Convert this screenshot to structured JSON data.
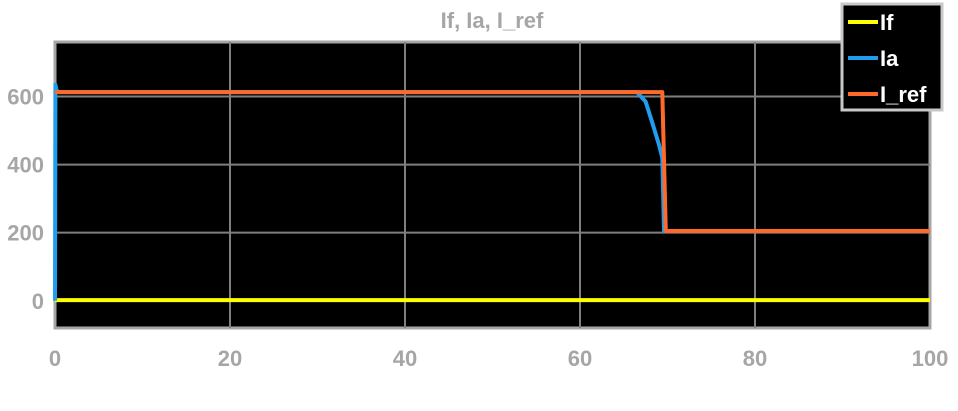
{
  "chart_data": {
    "type": "line",
    "title": "If, Ia, I_ref",
    "xlabel": "",
    "ylabel": "",
    "xlim": [
      0,
      100
    ],
    "ylim": [
      -80,
      760
    ],
    "xticks": [
      0,
      20,
      40,
      60,
      80,
      100
    ],
    "yticks": [
      0,
      200,
      400,
      600
    ],
    "grid": true,
    "background": "#000000",
    "grid_color": "#7f7f7f",
    "legend_position": "top-right",
    "series": [
      {
        "name": "If",
        "color": "#ffff00",
        "x": [
          0,
          100
        ],
        "y": [
          2,
          2
        ]
      },
      {
        "name": "Ia",
        "color": "#1f9ef0",
        "x": [
          0,
          0.05,
          0.15,
          0.3,
          0.5,
          66.5,
          67.5,
          68.3,
          69.0,
          69.4,
          69.6,
          70,
          100
        ],
        "y": [
          0,
          635,
          620,
          615,
          613,
          613,
          585,
          520,
          460,
          420,
          205,
          205,
          205
        ]
      },
      {
        "name": "I_ref",
        "color": "#ff6a2a",
        "x": [
          0,
          69.4,
          69.8,
          70,
          100
        ],
        "y": [
          613,
          613,
          205,
          205,
          205
        ]
      }
    ]
  }
}
